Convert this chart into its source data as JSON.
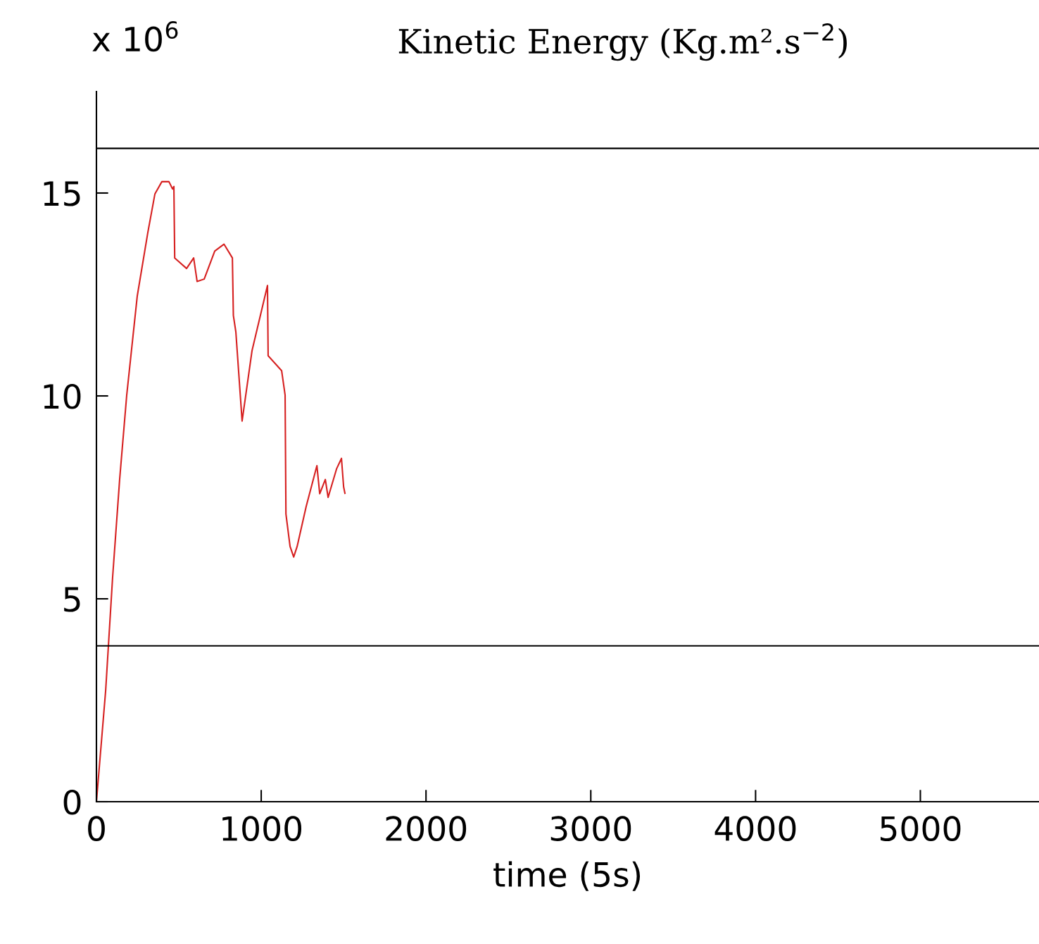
{
  "chart_data": {
    "type": "line",
    "title": "Kinetic Energy (Kg.m².s$^{−2}$)",
    "xlabel": "time (5s)",
    "annotations": [
      "x 10$^{6}$"
    ],
    "x": [
      0,
      56,
      98,
      141,
      184,
      248,
      312,
      355,
      397,
      440,
      462,
      470,
      475,
      547,
      590,
      611,
      654,
      718,
      774,
      825,
      831,
      846,
      884,
      944,
      1038,
      1042,
      1124,
      1145,
      1150,
      1175,
      1197,
      1218,
      1273,
      1338,
      1355,
      1389,
      1406,
      1457,
      1487,
      1500,
      1508
    ],
    "series": [
      {
        "color": "#d62020",
        "values": [
          0,
          2.74,
          5.52,
          7.95,
          10.03,
          12.47,
          14.03,
          14.98,
          15.28,
          15.28,
          15.1,
          15.16,
          13.4,
          13.14,
          13.4,
          12.82,
          12.88,
          13.57,
          13.74,
          13.4,
          11.98,
          11.58,
          9.38,
          11.11,
          12.72,
          10.99,
          10.62,
          10.02,
          7.09,
          6.29,
          6.03,
          6.29,
          7.28,
          8.28,
          7.59,
          7.94,
          7.5,
          8.2,
          8.46,
          7.76,
          7.6
        ]
      }
    ],
    "xlim": [
      0,
      5720
    ],
    "ylim": [
      0,
      17.5
    ],
    "xticks": [
      0,
      1000,
      2000,
      3000,
      4000,
      5000
    ],
    "yticks": [
      0,
      5,
      10,
      15
    ],
    "ref_lines": [
      {
        "axis": "y",
        "value": 16.1,
        "color": "#000000"
      },
      {
        "axis": "y",
        "value": 3.84,
        "color": "#000000"
      }
    ],
    "grid": false,
    "legend": false,
    "marker": "none",
    "line_style": "solid"
  }
}
